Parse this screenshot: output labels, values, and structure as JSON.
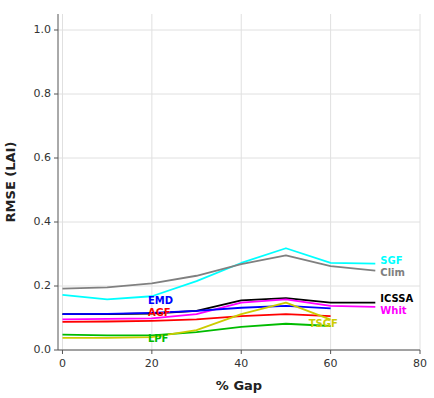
{
  "chart_data": {
    "type": "line",
    "x": [
      0,
      10,
      20,
      30,
      40,
      50,
      60,
      70
    ],
    "series": [
      {
        "name": "SGF",
        "color": "#00FFFF",
        "values": [
          0.172,
          0.158,
          0.168,
          0.215,
          0.272,
          0.318,
          0.272,
          0.27
        ]
      },
      {
        "name": "Clim",
        "color": "#808080",
        "values": [
          0.192,
          0.196,
          0.208,
          0.232,
          0.268,
          0.296,
          0.262,
          0.248
        ]
      },
      {
        "name": "ICSSA",
        "color": "#000000",
        "values": [
          0.112,
          0.112,
          0.114,
          0.122,
          0.155,
          0.162,
          0.148,
          0.148
        ]
      },
      {
        "name": "Whit",
        "color": "#FF00FF",
        "values": [
          0.096,
          0.097,
          0.099,
          0.112,
          0.148,
          0.158,
          0.138,
          0.135
        ]
      },
      {
        "name": "EMD",
        "color": "#0000FF",
        "values": [
          0.112,
          0.113,
          0.116,
          0.122,
          0.132,
          0.138,
          0.13,
          null
        ]
      },
      {
        "name": "AGF",
        "color": "#FF0000",
        "values": [
          0.088,
          0.089,
          0.091,
          0.096,
          0.106,
          0.112,
          0.106,
          null
        ]
      },
      {
        "name": "LPF",
        "color": "#00BB00",
        "values": [
          0.048,
          0.046,
          0.046,
          0.056,
          0.072,
          0.082,
          0.075,
          null
        ]
      },
      {
        "name": "TSGF",
        "color": "#CCCC00",
        "values": [
          0.038,
          0.038,
          0.04,
          0.062,
          0.112,
          0.148,
          0.095,
          null
        ]
      }
    ],
    "xlabel": "% Gap",
    "ylabel": "RMSE (LAI)",
    "xlim": [
      -1,
      80
    ],
    "ylim": [
      0,
      1.05
    ],
    "xticks": [
      0,
      20,
      40,
      60,
      80
    ],
    "yticks": [
      {
        "value": 0,
        "label": "0.0"
      },
      0.2,
      0.4,
      0.6,
      0.8,
      {
        "value": 1.0,
        "label": "1.0"
      }
    ],
    "grid": true,
    "annotations": [
      {
        "text": "SGF",
        "x": 70,
        "y": 0.27,
        "color": "#00FFFF"
      },
      {
        "text": "Clim",
        "x": 70,
        "y": 0.248,
        "color": "#808080"
      },
      {
        "text": "ICSSA",
        "x": 70,
        "y": 0.148,
        "color": "#000000"
      },
      {
        "text": "Whit",
        "x": 70,
        "y": 0.132,
        "color": "#FF00FF"
      },
      {
        "text": "EMD",
        "x": 18,
        "y": 0.152,
        "color": "#0000FF"
      },
      {
        "text": "AGF",
        "x": 18,
        "y": 0.115,
        "color": "#FF0000"
      },
      {
        "text": "LPF",
        "x": 18,
        "y": 0.034,
        "color": "#00BB00"
      },
      {
        "text": "TSGF",
        "x": 54,
        "y": 0.08,
        "color": "#CCCC00"
      }
    ]
  }
}
